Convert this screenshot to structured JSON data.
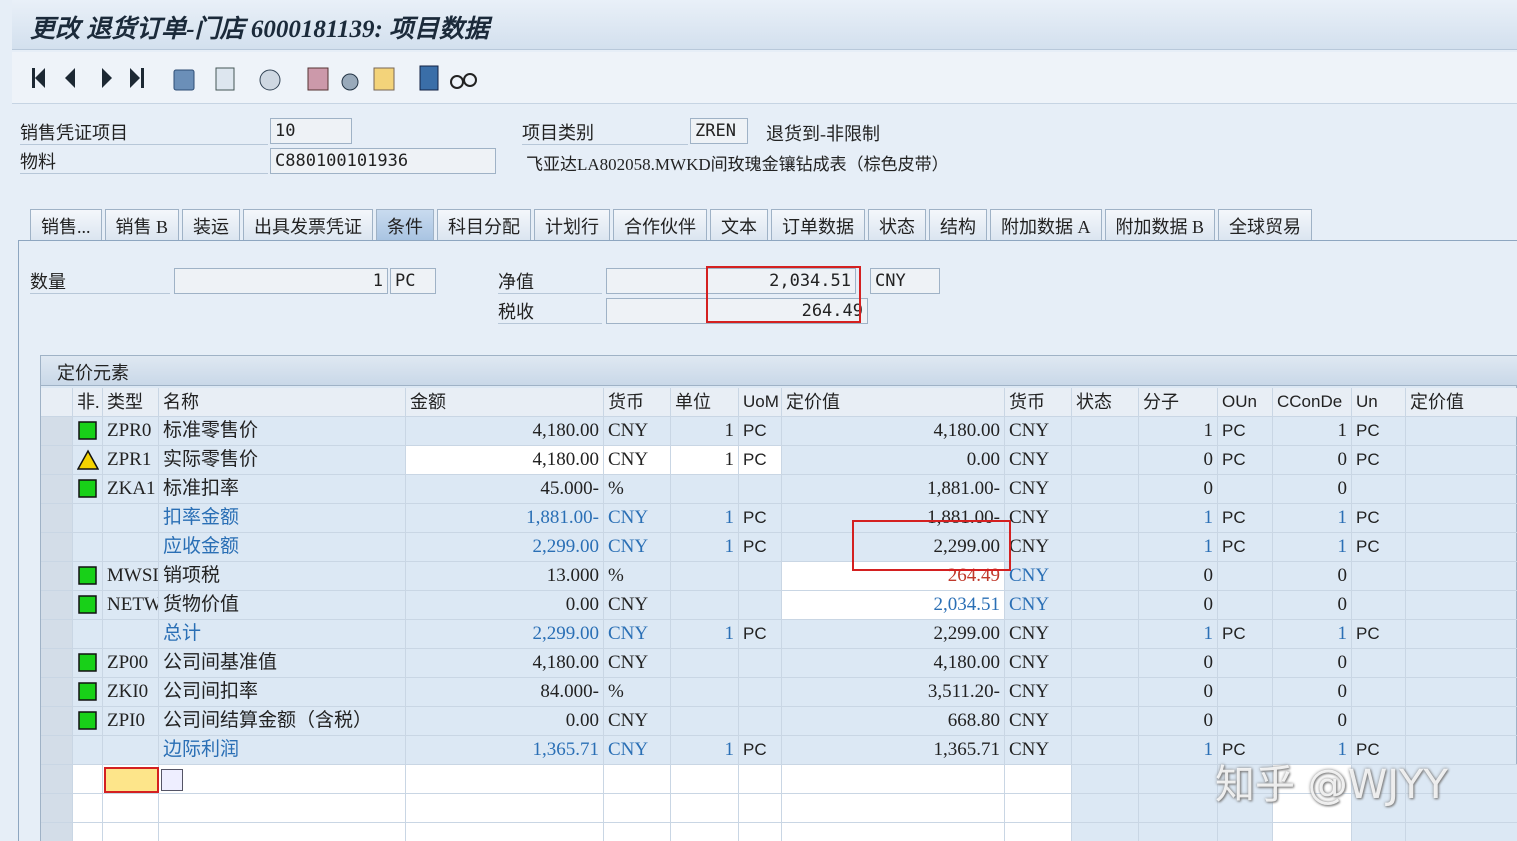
{
  "title": "更改 退货订单-门店 6000181139: 项目数据",
  "header": {
    "item_label": "销售凭证项目",
    "item_value": "10",
    "category_label": "项目类别",
    "category_value": "ZREN",
    "category_text": "退货到-非限制",
    "material_label": "物料",
    "material_value": "C880100101936",
    "material_text": "飞亚达LA802058.MWKD间玫瑰金镶钻成表（棕色皮带）"
  },
  "tabs": {
    "items": [
      "销售...",
      "销售 B",
      "装运",
      "出具发票凭证",
      "条件",
      "科目分配",
      "计划行",
      "合作伙伴",
      "文本",
      "订单数据",
      "状态",
      "结构",
      "附加数据 A",
      "附加数据 B",
      "全球贸易"
    ],
    "active": 4
  },
  "summary": {
    "qty_label": "数量",
    "qty_value": "1",
    "qty_unit": "PC",
    "net_label": "净值",
    "net_value": "2,034.51",
    "net_currency": "CNY",
    "tax_label": "税收",
    "tax_value": "264.49"
  },
  "pricing": {
    "title": "定价元素",
    "columns": [
      "非.",
      "类型",
      "名称",
      "金额",
      "货币",
      "单位",
      "UoM",
      "定价值",
      "货币",
      "状态",
      "分子",
      "OUn",
      "CConDe",
      "Un",
      "定价值"
    ],
    "rows": [
      {
        "status": "green",
        "cells": [
          null,
          "ZPR0",
          "标准零售价",
          "4,180.00",
          "CNY",
          "1",
          "PC",
          "4,180.00",
          "CNY",
          null,
          "1",
          "PC",
          "1",
          "PC",
          null
        ]
      },
      {
        "status": "warning",
        "cells": [
          null,
          "ZPR1",
          "实际零售价",
          "4,180.00",
          "CNY",
          "1",
          "PC",
          "0.00",
          "CNY",
          null,
          "0",
          "PC",
          "0",
          "PC",
          null
        ]
      },
      {
        "status": "green",
        "cells": [
          null,
          "ZKA1",
          "标准扣率",
          "45.000-",
          "%",
          null,
          null,
          "1,881.00-",
          "CNY",
          null,
          "0",
          null,
          "0",
          null,
          null
        ]
      },
      {
        "status": null,
        "cells": [
          null,
          null,
          "扣率金额",
          "1,881.00-",
          "CNY",
          "1",
          "PC",
          "1,881.00-",
          "CNY",
          null,
          "1",
          "PC",
          "1",
          "PC",
          null
        ]
      },
      {
        "status": null,
        "cells": [
          null,
          null,
          "应收金额",
          "2,299.00",
          "CNY",
          "1",
          "PC",
          "2,299.00",
          "CNY",
          null,
          "1",
          "PC",
          "1",
          "PC",
          null
        ]
      },
      {
        "status": "green",
        "value_color": "#c0392b",
        "cells": [
          null,
          "MWSI",
          "销项税",
          "13.000",
          "%",
          null,
          null,
          "264.49",
          "CNY",
          null,
          "0",
          null,
          "0",
          null,
          null
        ]
      },
      {
        "status": "green",
        "value_color": "#2a6fb5",
        "cells": [
          null,
          "NETW",
          "货物价值",
          "0.00",
          "CNY",
          null,
          null,
          "2,034.51",
          "CNY",
          null,
          "0",
          null,
          "0",
          null,
          null
        ]
      },
      {
        "status": null,
        "cells": [
          null,
          null,
          "总计",
          "2,299.00",
          "CNY",
          "1",
          "PC",
          "2,299.00",
          "CNY",
          null,
          "1",
          "PC",
          "1",
          "PC",
          null
        ]
      },
      {
        "status": "green",
        "cells": [
          null,
          "ZP00",
          "公司间基准值",
          "4,180.00",
          "CNY",
          null,
          null,
          "4,180.00",
          "CNY",
          null,
          "0",
          null,
          "0",
          null,
          null
        ]
      },
      {
        "status": "green",
        "cells": [
          null,
          "ZKI0",
          "公司间扣率",
          "84.000-",
          "%",
          null,
          null,
          "3,511.20-",
          "CNY",
          null,
          "0",
          null,
          "0",
          null,
          null
        ]
      },
      {
        "status": "green",
        "cells": [
          null,
          "ZPI0",
          "公司间结算金额（含税）",
          "0.00",
          "CNY",
          null,
          null,
          "668.80",
          "CNY",
          null,
          "0",
          null,
          "0",
          null,
          null
        ]
      },
      {
        "status": null,
        "cells": [
          null,
          null,
          "边际利润",
          "1,365.71",
          "CNY",
          "1",
          "PC",
          "1,365.71",
          "CNY",
          null,
          "1",
          "PC",
          "1",
          "PC",
          null
        ]
      }
    ]
  },
  "watermark": "知乎 @WJYY"
}
